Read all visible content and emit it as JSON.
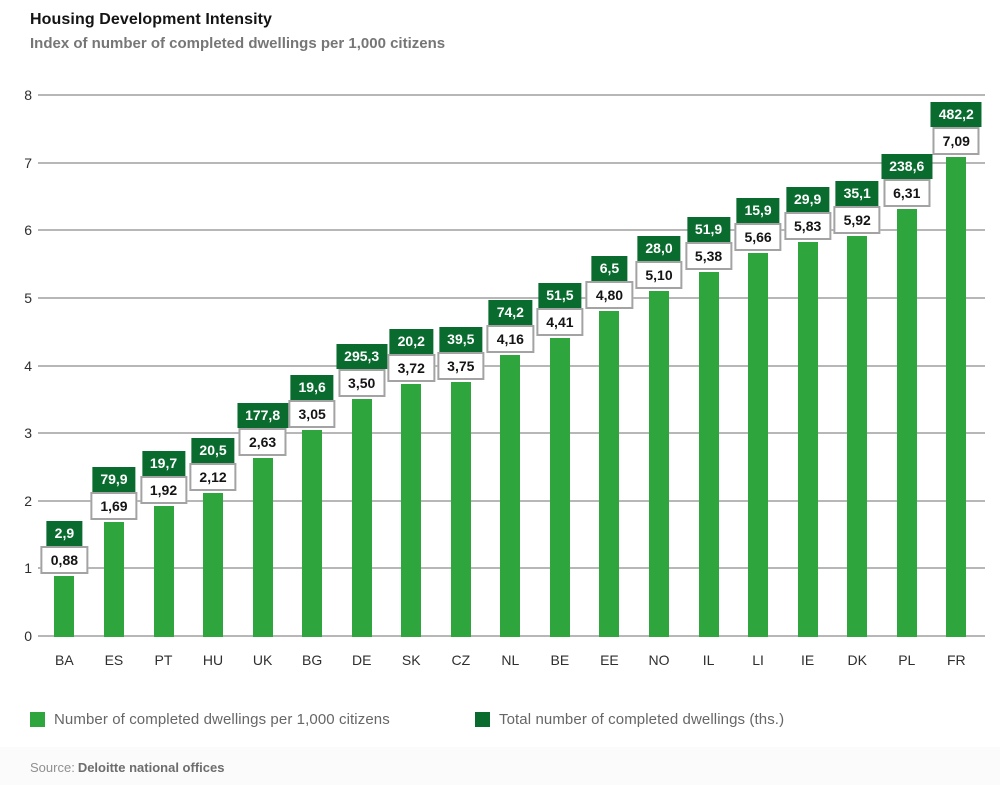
{
  "header": {
    "title": "Housing Development Intensity",
    "subtitle": "Index of number of completed dwellings per 1,000 citizens"
  },
  "chart_data": {
    "type": "bar",
    "title": "Housing Development Intensity",
    "subtitle": "Index of number of completed dwellings per 1,000 citizens",
    "categories": [
      "BA",
      "ES",
      "PT",
      "HU",
      "UK",
      "BG",
      "DE",
      "SK",
      "CZ",
      "NL",
      "BE",
      "EE",
      "NO",
      "IL",
      "LI",
      "IE",
      "DK",
      "PL",
      "FR"
    ],
    "series": [
      {
        "name": "Number of completed dwellings per 1,000 citizens",
        "role": "bar-height-and-white-label",
        "color": "#2fa53d",
        "values": [
          0.88,
          1.69,
          1.92,
          2.12,
          2.63,
          3.05,
          3.5,
          3.72,
          3.75,
          4.16,
          4.41,
          4.8,
          5.1,
          5.38,
          5.66,
          5.83,
          5.92,
          6.31,
          7.09
        ],
        "labels": [
          "0,88",
          "1,69",
          "1,92",
          "2,12",
          "2,63",
          "3,05",
          "3,50",
          "3,72",
          "3,75",
          "4,16",
          "4,41",
          "4,80",
          "5,10",
          "5,38",
          "5,66",
          "5,83",
          "5,92",
          "6,31",
          "7,09"
        ]
      },
      {
        "name": "Total number of completed dwellings (ths.)",
        "role": "dark-green-label-only",
        "color": "#0a6b2f",
        "values": [
          2.9,
          79.9,
          19.7,
          20.5,
          177.8,
          19.6,
          295.3,
          20.2,
          39.5,
          74.2,
          51.5,
          6.5,
          28.0,
          51.9,
          15.9,
          29.9,
          35.1,
          238.6,
          482.2
        ],
        "labels": [
          "2,9",
          "79,9",
          "19,7",
          "20,5",
          "177,8",
          "19,6",
          "295,3",
          "20,2",
          "39,5",
          "74,2",
          "51,5",
          "6,5",
          "28,0",
          "51,9",
          "15,9",
          "29,9",
          "35,1",
          "238,6",
          "482,2"
        ]
      }
    ],
    "ylim": [
      0,
      8
    ],
    "ytick_step": 1,
    "yticks": [
      "0",
      "1",
      "2",
      "3",
      "4",
      "5",
      "6",
      "7",
      "8"
    ],
    "grid": true,
    "legend_position": "bottom"
  },
  "legend": {
    "items": [
      {
        "label": "Number of completed dwellings per 1,000 citizens",
        "color": "#2fa53d"
      },
      {
        "label": "Total number of completed dwellings (ths.)",
        "color": "#0a6b2f"
      }
    ]
  },
  "footer": {
    "source_prefix": "Source:",
    "source": "Deloitte national offices"
  }
}
